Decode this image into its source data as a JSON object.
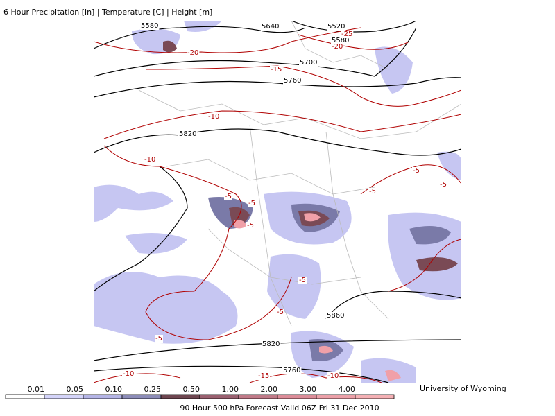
{
  "header": {
    "title": "6 Hour Precipitation [in] | Temperature [C] | Height [m]"
  },
  "map": {
    "height_labels": [
      "5580",
      "5640",
      "5520",
      "5580",
      "5700",
      "5760",
      "5820",
      "5860",
      "5820",
      "5760"
    ],
    "temperature_labels": [
      "-25",
      "-20",
      "-20",
      "-15",
      "-10",
      "-10",
      "-5",
      "-5",
      "-5",
      "-5",
      "-5",
      "-5",
      "-5",
      "-5",
      "-5",
      "-10",
      "-15",
      "-10"
    ]
  },
  "legend": {
    "labels": [
      "0.01",
      "0.05",
      "0.10",
      "0.25",
      "0.50",
      "1.00",
      "2.00",
      "3.00",
      "4.00"
    ]
  },
  "footer": {
    "caption": "90 Hour 500 hPa Forecast Valid 06Z Fri 31 Dec 2010",
    "credit": "University of Wyoming"
  }
}
